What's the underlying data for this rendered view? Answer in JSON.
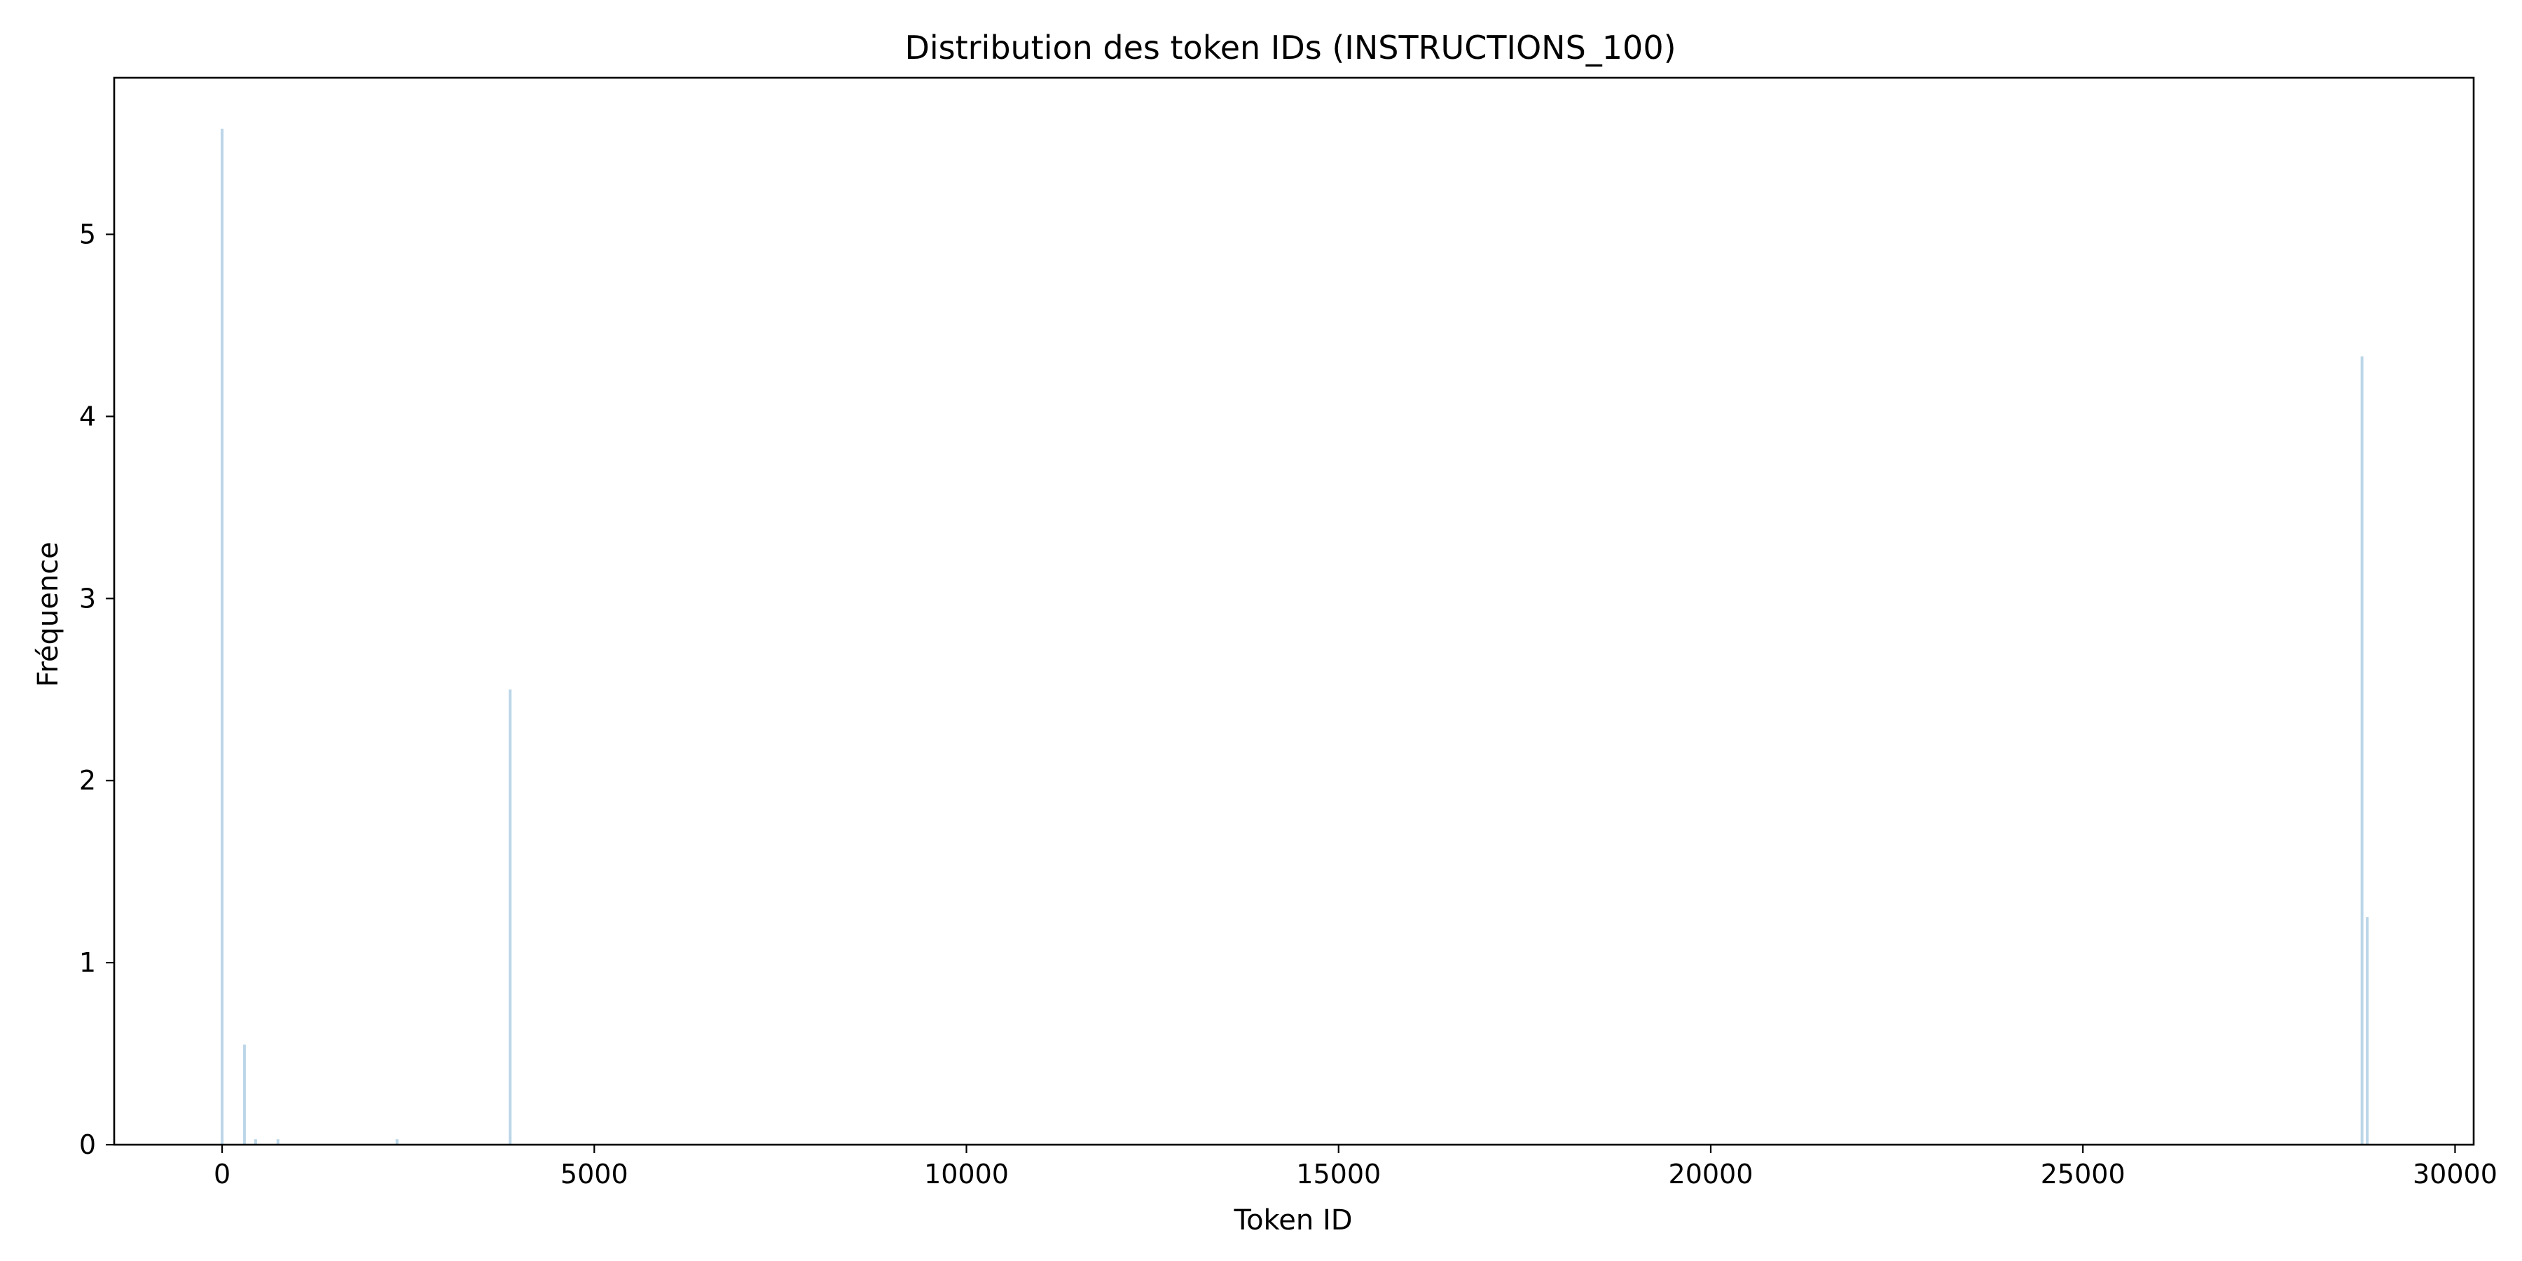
{
  "chart_data": {
    "type": "bar",
    "title": "Distribution des token IDs (INSTRUCTIONS_100)",
    "xlabel": "Token ID",
    "ylabel": "Fréquence",
    "xlim": [
      -1450,
      30250
    ],
    "ylim": [
      0,
      5.86
    ],
    "xticks": [
      0,
      5000,
      10000,
      15000,
      20000,
      25000,
      30000
    ],
    "yticks": [
      0,
      1,
      2,
      3,
      4,
      5
    ],
    "grid": false,
    "color": "#1f77b4",
    "bars": [
      {
        "x": 0,
        "y": 5.58
      },
      {
        "x": 300,
        "y": 0.55
      },
      {
        "x": 450,
        "y": 0.03
      },
      {
        "x": 750,
        "y": 0.03
      },
      {
        "x": 2350,
        "y": 0.03
      },
      {
        "x": 3870,
        "y": 2.5
      },
      {
        "x": 28750,
        "y": 4.33
      },
      {
        "x": 28820,
        "y": 1.25
      }
    ]
  }
}
